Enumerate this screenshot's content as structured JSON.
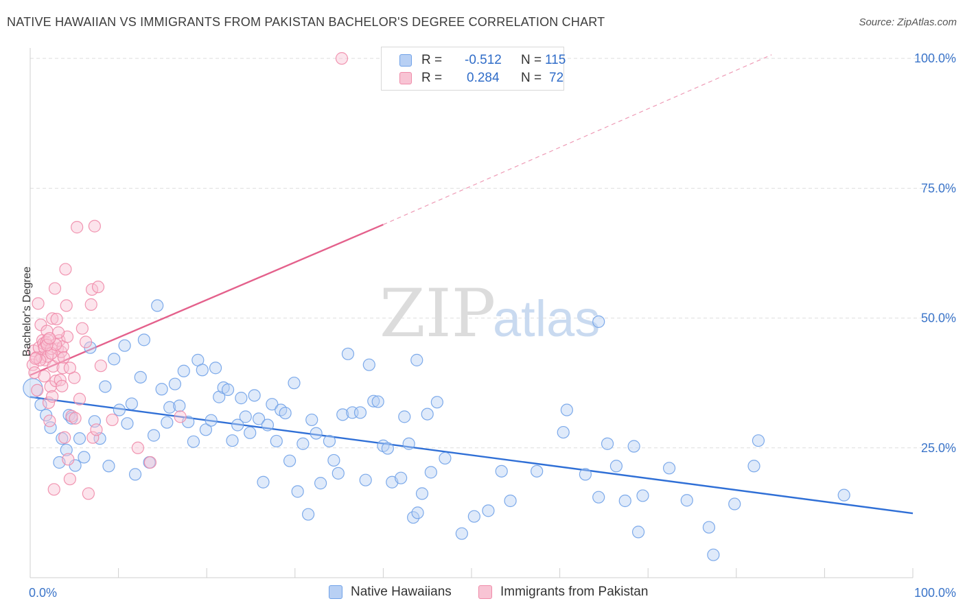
{
  "title": "NATIVE HAWAIIAN VS IMMIGRANTS FROM PAKISTAN BACHELOR'S DEGREE CORRELATION CHART",
  "source": "Source: ZipAtlas.com",
  "watermark": {
    "zip": "ZIP",
    "atlas": "atlas"
  },
  "stats": [
    {
      "r_label": "R = ",
      "r_value": "-0.512",
      "n_label": "N = ",
      "n_value": "115",
      "color": "#6fa1e8",
      "fill": "#b8d0f4"
    },
    {
      "r_label": "R = ",
      "r_value": "0.284",
      "n_label": "N = ",
      "n_value": "72",
      "color": "#ef8aa8",
      "fill": "#f8c4d4"
    }
  ],
  "legend": [
    {
      "label": "Native Hawaiians",
      "color": "#6fa1e8",
      "fill": "#b8d0f4"
    },
    {
      "label": "Immigrants from Pakistan",
      "color": "#ef8aa8",
      "fill": "#f8c4d4"
    }
  ],
  "chart_data": {
    "type": "scatter",
    "title": "NATIVE HAWAIIAN VS IMMIGRANTS FROM PAKISTAN BACHELOR'S DEGREE CORRELATION CHART",
    "xlabel": "",
    "ylabel": "Bachelor's Degree",
    "xlim": [
      0,
      100
    ],
    "ylim": [
      0,
      102
    ],
    "x_tick_labels": [
      {
        "value": 0,
        "label": "0.0%"
      },
      {
        "value": 100,
        "label": "100.0%"
      }
    ],
    "y_tick_labels": [
      {
        "value": 25,
        "label": "25.0%"
      },
      {
        "value": 50,
        "label": "50.0%"
      },
      {
        "value": 75,
        "label": "75.0%"
      },
      {
        "value": 100,
        "label": "100.0%"
      }
    ],
    "series": [
      {
        "name": "Native Hawaiians",
        "color": "#6fa1e8",
        "fill": "#b8d0f4",
        "trend": {
          "x0": 0,
          "y0": 34.8,
          "x1": 100,
          "y1": 12.4
        },
        "points": [
          [
            0.3,
            36.5
          ],
          [
            1.2,
            33.3
          ],
          [
            1.8,
            31.3
          ],
          [
            2.3,
            28.9
          ],
          [
            3.3,
            22.2
          ],
          [
            3.6,
            26.8
          ],
          [
            4.1,
            24.6
          ],
          [
            4.4,
            31.3
          ],
          [
            4.7,
            30.7
          ],
          [
            5.1,
            21.6
          ],
          [
            5.6,
            26.8
          ],
          [
            6.1,
            23.2
          ],
          [
            6.8,
            44.3
          ],
          [
            7.3,
            30.1
          ],
          [
            7.9,
            26.8
          ],
          [
            8.5,
            36.8
          ],
          [
            8.9,
            21.5
          ],
          [
            9.5,
            42.1
          ],
          [
            10.1,
            32.3
          ],
          [
            10.7,
            44.7
          ],
          [
            11.0,
            29.7
          ],
          [
            11.5,
            33.5
          ],
          [
            11.9,
            19.9
          ],
          [
            12.5,
            38.6
          ],
          [
            12.9,
            45.8
          ],
          [
            13.5,
            22.2
          ],
          [
            14.0,
            27.4
          ],
          [
            14.4,
            52.4
          ],
          [
            14.9,
            36.3
          ],
          [
            15.5,
            29.9
          ],
          [
            15.8,
            32.8
          ],
          [
            16.4,
            37.3
          ],
          [
            16.9,
            33.1
          ],
          [
            17.4,
            39.8
          ],
          [
            17.9,
            30.0
          ],
          [
            18.5,
            26.2
          ],
          [
            19.0,
            41.9
          ],
          [
            19.5,
            40.0
          ],
          [
            19.9,
            28.5
          ],
          [
            20.5,
            30.3
          ],
          [
            21.0,
            40.4
          ],
          [
            21.4,
            34.8
          ],
          [
            21.9,
            36.6
          ],
          [
            22.4,
            36.2
          ],
          [
            22.9,
            26.4
          ],
          [
            23.5,
            29.4
          ],
          [
            23.9,
            34.6
          ],
          [
            24.4,
            31.0
          ],
          [
            24.9,
            27.9
          ],
          [
            25.4,
            35.1
          ],
          [
            25.9,
            30.6
          ],
          [
            26.4,
            18.4
          ],
          [
            26.9,
            29.4
          ],
          [
            27.4,
            33.4
          ],
          [
            27.9,
            26.3
          ],
          [
            28.4,
            32.3
          ],
          [
            28.9,
            31.7
          ],
          [
            29.4,
            22.5
          ],
          [
            29.9,
            37.5
          ],
          [
            30.3,
            16.6
          ],
          [
            30.9,
            25.8
          ],
          [
            31.5,
            12.2
          ],
          [
            31.9,
            30.4
          ],
          [
            32.4,
            27.8
          ],
          [
            32.9,
            18.2
          ],
          [
            33.9,
            26.3
          ],
          [
            34.4,
            22.6
          ],
          [
            34.9,
            20.1
          ],
          [
            35.4,
            31.4
          ],
          [
            36.0,
            43.1
          ],
          [
            36.5,
            31.8
          ],
          [
            37.4,
            31.8
          ],
          [
            38.0,
            18.8
          ],
          [
            38.4,
            41.0
          ],
          [
            38.9,
            34.0
          ],
          [
            39.4,
            33.9
          ],
          [
            40.0,
            25.4
          ],
          [
            40.5,
            24.9
          ],
          [
            41.0,
            18.4
          ],
          [
            42.0,
            19.2
          ],
          [
            42.4,
            31.0
          ],
          [
            42.9,
            25.8
          ],
          [
            43.4,
            11.6
          ],
          [
            43.9,
            12.5
          ],
          [
            44.4,
            16.2
          ],
          [
            45.0,
            31.5
          ],
          [
            45.4,
            20.3
          ],
          [
            46.1,
            33.8
          ],
          [
            47.0,
            23.0
          ],
          [
            48.9,
            8.5
          ],
          [
            50.3,
            11.8
          ],
          [
            51.9,
            12.9
          ],
          [
            53.4,
            20.5
          ],
          [
            54.4,
            14.8
          ],
          [
            57.4,
            20.5
          ],
          [
            60.4,
            28.0
          ],
          [
            60.8,
            32.3
          ],
          [
            62.9,
            19.9
          ],
          [
            64.4,
            15.5
          ],
          [
            65.4,
            25.8
          ],
          [
            66.4,
            21.5
          ],
          [
            67.4,
            14.8
          ],
          [
            68.4,
            25.3
          ],
          [
            68.9,
            8.8
          ],
          [
            69.4,
            15.8
          ],
          [
            72.4,
            21.1
          ],
          [
            74.4,
            14.9
          ],
          [
            76.9,
            9.7
          ],
          [
            77.4,
            4.4
          ],
          [
            79.8,
            14.2
          ],
          [
            82.0,
            21.5
          ],
          [
            82.5,
            26.4
          ],
          [
            92.2,
            15.9
          ],
          [
            64.4,
            49.3
          ],
          [
            43.8,
            41.9
          ]
        ]
      },
      {
        "name": "Immigrants from Pakistan",
        "color": "#ef8aa8",
        "fill": "#f8c4d4",
        "trend": {
          "x0": 0,
          "y0": 39.0,
          "x1": 40,
          "y1": 68.0,
          "dash_x1": 84,
          "dash_y1": 100.7
        },
        "points": [
          [
            0.3,
            41.0
          ],
          [
            0.4,
            43.7
          ],
          [
            0.5,
            39.5
          ],
          [
            0.7,
            42.4
          ],
          [
            0.8,
            36.1
          ],
          [
            0.9,
            52.8
          ],
          [
            1.0,
            44.3
          ],
          [
            1.2,
            48.7
          ],
          [
            1.3,
            42.5
          ],
          [
            1.4,
            45.7
          ],
          [
            1.5,
            45.1
          ],
          [
            1.6,
            44.3
          ],
          [
            1.7,
            41.9
          ],
          [
            1.8,
            45.3
          ],
          [
            1.9,
            47.5
          ],
          [
            2.0,
            45.8
          ],
          [
            2.0,
            42.6
          ],
          [
            2.1,
            33.7
          ],
          [
            2.2,
            30.2
          ],
          [
            2.3,
            36.8
          ],
          [
            2.4,
            44.1
          ],
          [
            2.5,
            49.9
          ],
          [
            2.5,
            34.9
          ],
          [
            2.6,
            40.7
          ],
          [
            2.7,
            17.0
          ],
          [
            2.8,
            55.7
          ],
          [
            2.9,
            37.9
          ],
          [
            3.0,
            49.8
          ],
          [
            3.1,
            44.1
          ],
          [
            3.2,
            42.4
          ],
          [
            3.3,
            45.7
          ],
          [
            3.4,
            38.1
          ],
          [
            3.5,
            43.5
          ],
          [
            3.6,
            36.9
          ],
          [
            3.7,
            44.5
          ],
          [
            3.8,
            42.4
          ],
          [
            3.9,
            27.0
          ],
          [
            4.0,
            59.4
          ],
          [
            4.1,
            52.4
          ],
          [
            4.2,
            46.4
          ],
          [
            4.3,
            22.8
          ],
          [
            4.5,
            19.0
          ],
          [
            4.7,
            31.1
          ],
          [
            5.0,
            38.5
          ],
          [
            5.1,
            30.7
          ],
          [
            5.3,
            67.5
          ],
          [
            5.6,
            34.4
          ],
          [
            5.9,
            48.0
          ],
          [
            6.3,
            45.4
          ],
          [
            6.6,
            16.2
          ],
          [
            6.9,
            52.6
          ],
          [
            7.0,
            55.5
          ],
          [
            7.1,
            27.0
          ],
          [
            7.3,
            67.7
          ],
          [
            7.5,
            28.5
          ],
          [
            7.7,
            56.0
          ],
          [
            8.0,
            40.8
          ],
          [
            9.3,
            30.4
          ],
          [
            12.2,
            25.0
          ],
          [
            13.6,
            22.2
          ],
          [
            17.0,
            31.0
          ],
          [
            35.3,
            100.0
          ],
          [
            1.1,
            41.9
          ],
          [
            2.4,
            43.2
          ],
          [
            3.2,
            47.2
          ],
          [
            1.6,
            38.8
          ],
          [
            2.9,
            44.9
          ],
          [
            0.6,
            42.2
          ],
          [
            3.7,
            40.4
          ],
          [
            1.9,
            44.8
          ],
          [
            4.5,
            40.4
          ],
          [
            2.2,
            46.1
          ]
        ]
      }
    ]
  }
}
